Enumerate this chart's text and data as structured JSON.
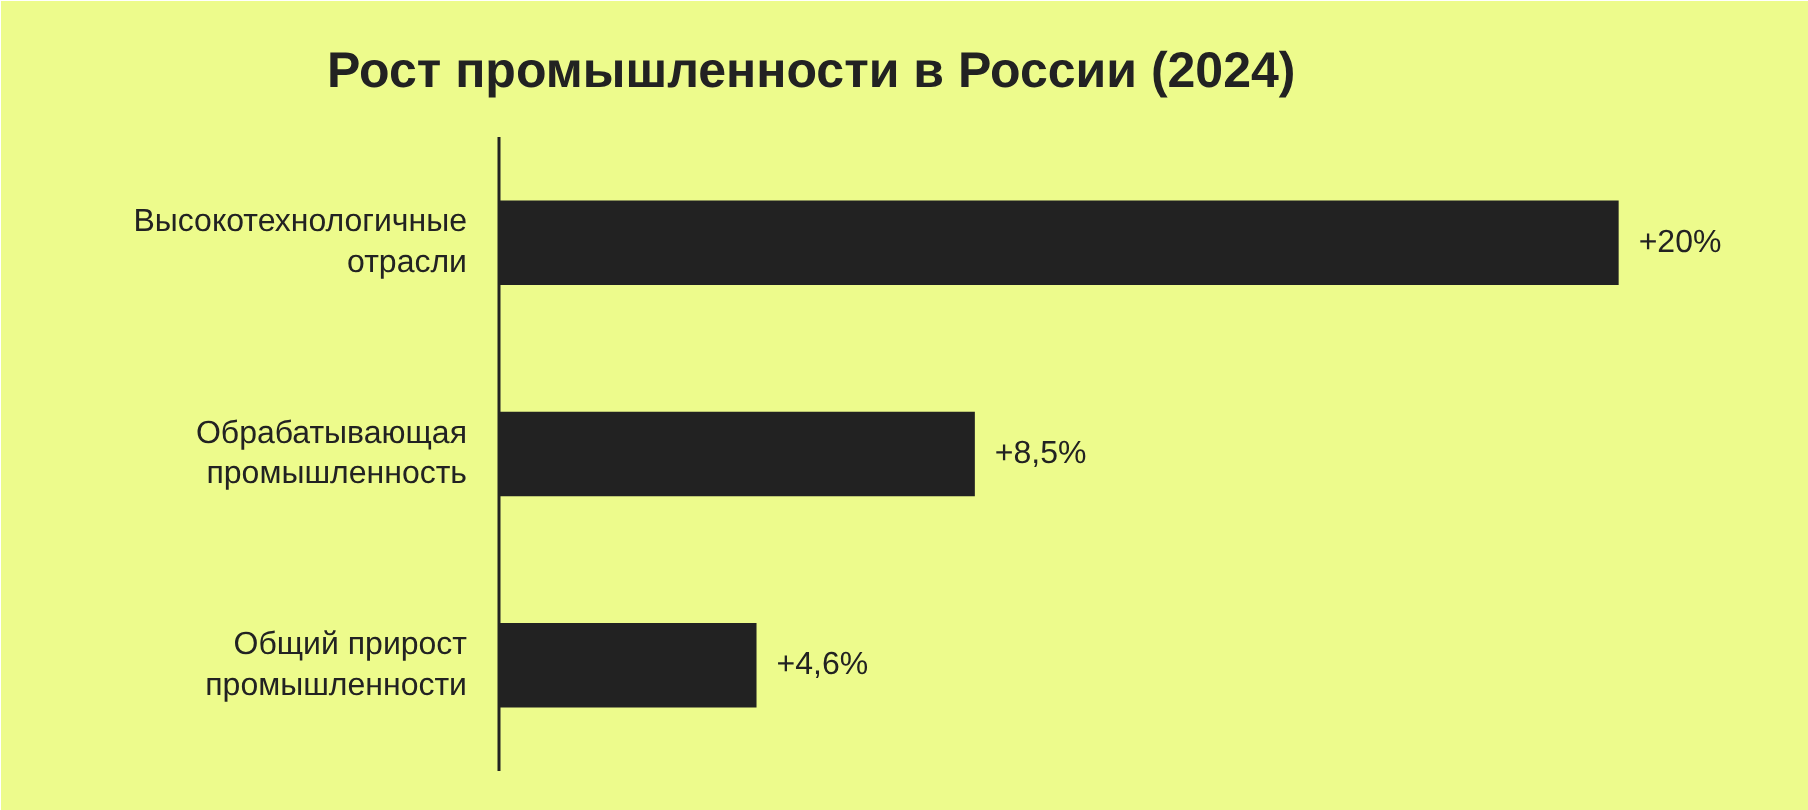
{
  "chart_data": {
    "type": "bar",
    "orientation": "horizontal",
    "title": "Рост промышленности в России (2024)",
    "categories": [
      "Высокотехнологичные отрасли",
      "Обрабатывающая промышленность",
      "Общий прирост промышленности"
    ],
    "values": [
      20,
      8.5,
      4.6
    ],
    "value_labels": [
      "+20%",
      "+8,5%",
      "+4,6%"
    ],
    "color": "#222222",
    "grid": false
  }
}
